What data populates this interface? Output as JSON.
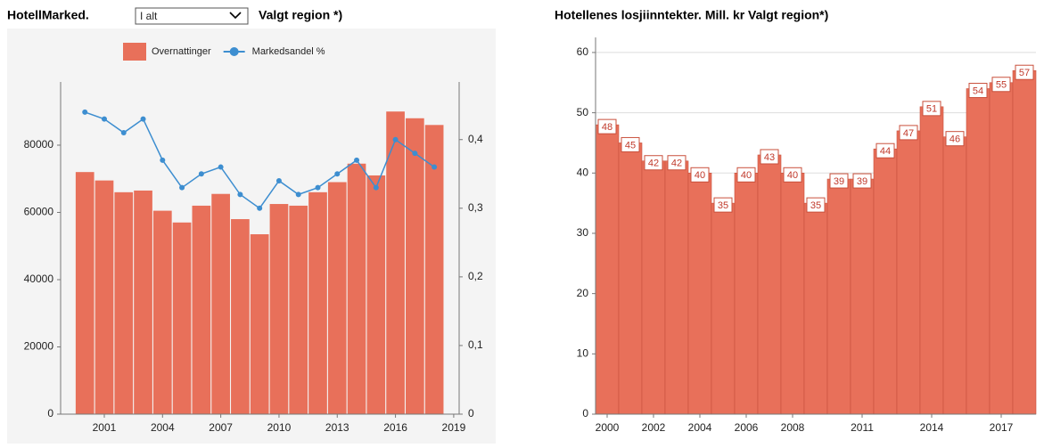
{
  "chart_data": [
    {
      "type": "combo",
      "title": "HotellMarked.",
      "dropdown": "I alt",
      "subtitle": "Valgt region *)",
      "x": [
        2000,
        2001,
        2002,
        2003,
        2004,
        2005,
        2006,
        2007,
        2008,
        2009,
        2010,
        2011,
        2012,
        2013,
        2014,
        2015,
        2016,
        2017,
        2018
      ],
      "xlim": [
        1998.75,
        2019.28
      ],
      "xticks": [
        2001,
        2004,
        2007,
        2010,
        2013,
        2016,
        2019
      ],
      "ylim": [
        0,
        98800
      ],
      "yticks": [
        0,
        20000,
        40000,
        60000,
        80000
      ],
      "y2lim": [
        0,
        0.484
      ],
      "y2ticks": [
        0,
        {
          "value": 0.1,
          "label": "0,1"
        },
        {
          "value": 0.2,
          "label": "0,2"
        },
        {
          "value": 0.3,
          "label": "0,3"
        },
        {
          "value": 0.4,
          "label": "0,4"
        }
      ],
      "legend": "top",
      "series": [
        {
          "name": "Overnattinger",
          "color": "#e8705a",
          "values": [
            72000,
            69500,
            66000,
            66500,
            60500,
            57000,
            62000,
            65500,
            58000,
            53500,
            62500,
            62000,
            66000,
            69000,
            74500,
            71000,
            90000,
            88000,
            86000
          ]
        },
        {
          "name": "Markedsandel %",
          "color": "#3d8ed0",
          "axis": "y2",
          "values": [
            0.44,
            0.43,
            0.41,
            0.43,
            0.37,
            0.33,
            0.35,
            0.36,
            0.32,
            0.3,
            0.34,
            0.32,
            0.33,
            0.35,
            0.37,
            0.33,
            0.4,
            0.38,
            0.36
          ]
        }
      ]
    },
    {
      "type": "bar",
      "title": "Hotellenes losjiinntekter. Mill. kr  Valgt region*)",
      "categories": [
        "2000",
        null,
        "2002",
        null,
        "2004",
        null,
        "2006",
        null,
        "2008",
        null,
        null,
        "2011",
        null,
        null,
        "2014",
        null,
        null,
        "2017",
        null
      ],
      "values": [
        48,
        45,
        42,
        42,
        40,
        35,
        40,
        43,
        40,
        35,
        39,
        39,
        44,
        47,
        51,
        46,
        54,
        55,
        57
      ],
      "color": "#e8705a",
      "ylim": [
        0,
        62.5
      ],
      "yticks": [
        0,
        10,
        20,
        30,
        40,
        50,
        60
      ],
      "grid": true
    }
  ]
}
